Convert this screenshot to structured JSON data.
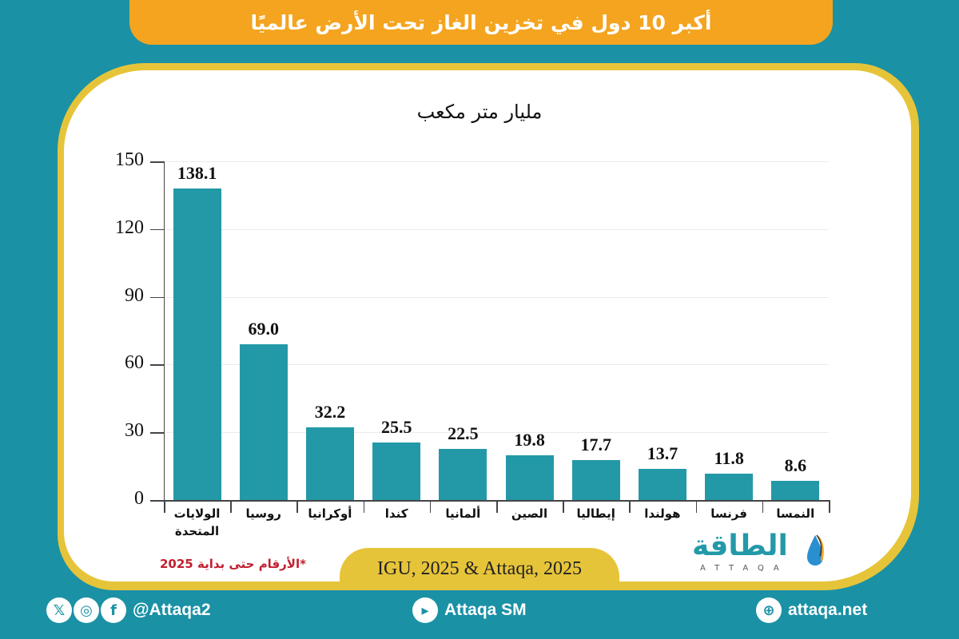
{
  "header": {
    "title": "أكبر 10 دول في تخزين الغاز تحت الأرض عالميًا"
  },
  "chart_data": {
    "type": "bar",
    "title": "أكبر 10 دول في تخزين الغاز تحت الأرض عالميًا",
    "subtitle": "مليار متر مكعب",
    "xlabel": "",
    "ylabel": "مليار متر مكعب",
    "ylim": [
      0,
      150
    ],
    "yticks": [
      "0",
      "30",
      "60",
      "90",
      "120",
      "150"
    ],
    "grid": true,
    "legend": "none",
    "categories": [
      "الولايات المتحدة",
      "روسيا",
      "أوكرانيا",
      "كندا",
      "ألمانيا",
      "الصين",
      "إيطاليا",
      "هولندا",
      "فرنسا",
      "النمسا"
    ],
    "values": [
      138.1,
      69.0,
      32.2,
      25.5,
      22.5,
      19.8,
      17.7,
      13.7,
      11.8,
      8.6
    ],
    "value_labels": [
      "138.1",
      "69.0",
      "32.2",
      "25.5",
      "22.5",
      "19.8",
      "17.7",
      "13.7",
      "11.8",
      "8.6"
    ],
    "bar_color": "#2399a8",
    "annotations": [
      "*الأرقام حتى بداية 2025"
    ]
  },
  "chart": {
    "subtitle": "مليار متر مكعب",
    "yticks": [
      "0",
      "30",
      "60",
      "90",
      "120",
      "150"
    ],
    "cat_lines": [
      [
        "الولايات",
        "المتحدة"
      ],
      [
        "روسيا"
      ],
      [
        "أوكرانيا"
      ],
      [
        "كندا"
      ],
      [
        "ألمانيا"
      ],
      [
        "الصين"
      ],
      [
        "إيطاليا"
      ],
      [
        "هولندا"
      ],
      [
        "فرنسا"
      ],
      [
        "النمسا"
      ]
    ]
  },
  "note": "*الأرقام حتى بداية 2025",
  "source": "IGU, 2025 & Attaqa, 2025",
  "logo": {
    "arabic": "الطاقة",
    "latin": "ATTAQA"
  },
  "footer": {
    "social_handle": "@Attaqa2",
    "youtube": "Attaqa SM",
    "website": "attaqa.net",
    "icons": [
      "x-icon",
      "instagram-icon",
      "facebook-icon",
      "youtube-icon",
      "globe-icon"
    ]
  },
  "colors": {
    "background": "#1b91a5",
    "title_bar": "#f4a41f",
    "card_border": "#e6c43a",
    "bar": "#2399a8",
    "note": "#c0202f"
  }
}
